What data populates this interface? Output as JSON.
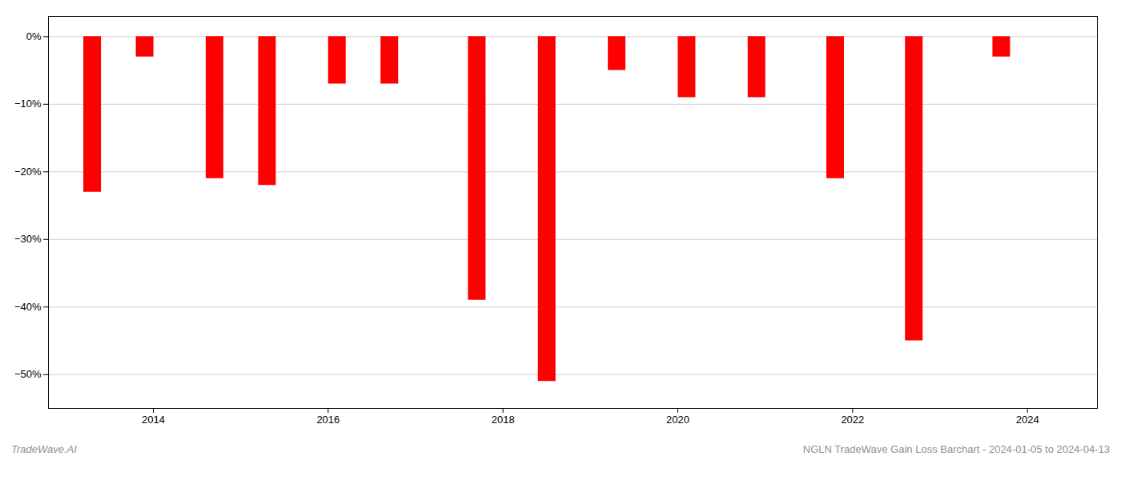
{
  "chart_data": {
    "type": "bar",
    "x": [
      2013.3,
      2013.9,
      2014.7,
      2015.3,
      2016.1,
      2016.7,
      2017.7,
      2018.5,
      2019.3,
      2020.1,
      2020.9,
      2021.8,
      2022.7,
      2023.7
    ],
    "values": [
      -23,
      -3,
      -21,
      -22,
      -7,
      -7,
      -39,
      -51,
      -5,
      -9,
      -9,
      -21,
      -45,
      -3
    ],
    "color": "#ff0000",
    "xlim": [
      2012.8,
      2024.8
    ],
    "xticks": [
      2014,
      2016,
      2018,
      2020,
      2022,
      2024
    ],
    "ylim": [
      -55,
      3
    ],
    "yticks": [
      {
        "value": 0,
        "label": "0%"
      },
      {
        "value": -10,
        "label": "−10%"
      },
      {
        "value": -20,
        "label": "−20%"
      },
      {
        "value": -30,
        "label": "−30%"
      },
      {
        "value": -40,
        "label": "−40%"
      },
      {
        "value": -50,
        "label": "−50%"
      }
    ],
    "grid": true,
    "annotations": [
      "TradeWave.AI",
      "NGLN TradeWave Gain Loss Barchart - 2024-01-05 to 2024-04-13"
    ]
  }
}
